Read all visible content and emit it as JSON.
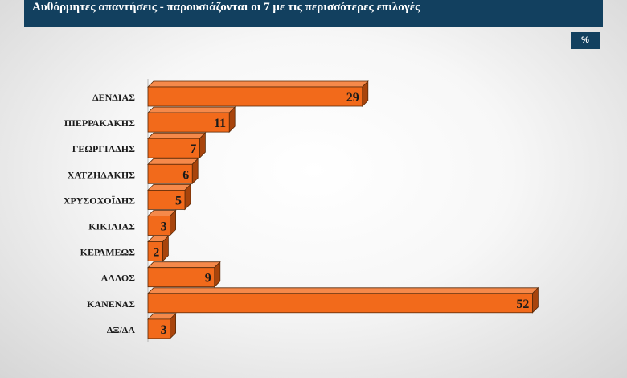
{
  "header": {
    "title": "Αυθόρμητες απαντήσεις - παρουσιάζονται οι 7 με τις περισσότερες επιλογές",
    "unit": "%"
  },
  "colors": {
    "header_bg": "#12405f",
    "bar_front": "#f26a1b",
    "bar_top": "#f5894a",
    "bar_side": "#a8440c",
    "bar_stroke": "#5a2a08"
  },
  "chart_data": {
    "type": "bar",
    "orientation": "horizontal",
    "style": "3d",
    "categories": [
      "ΔΕΝΔΙΑΣ",
      "ΠΙΕΡΡΑΚΑΚΗΣ",
      "ΓΕΩΡΓΙΑΔΗΣ",
      "ΧΑΤΖΗΔΑΚΗΣ",
      "ΧΡΥΣΟΧΟΪΔΗΣ",
      "ΚΙΚΙΛΙΑΣ",
      "ΚΕΡΑΜΕΩΣ",
      "ΑΛΛΟΣ",
      "ΚΑΝΕΝΑΣ",
      "ΔΞ/ΔΑ"
    ],
    "values": [
      29,
      11,
      7,
      6,
      5,
      3,
      2,
      9,
      52,
      3
    ],
    "data_labels": [
      "29",
      "11",
      "7",
      "6",
      "5",
      "3",
      "2",
      "9",
      "52",
      "3"
    ],
    "xlim": [
      0,
      52
    ],
    "grid": false,
    "legend": "none"
  }
}
